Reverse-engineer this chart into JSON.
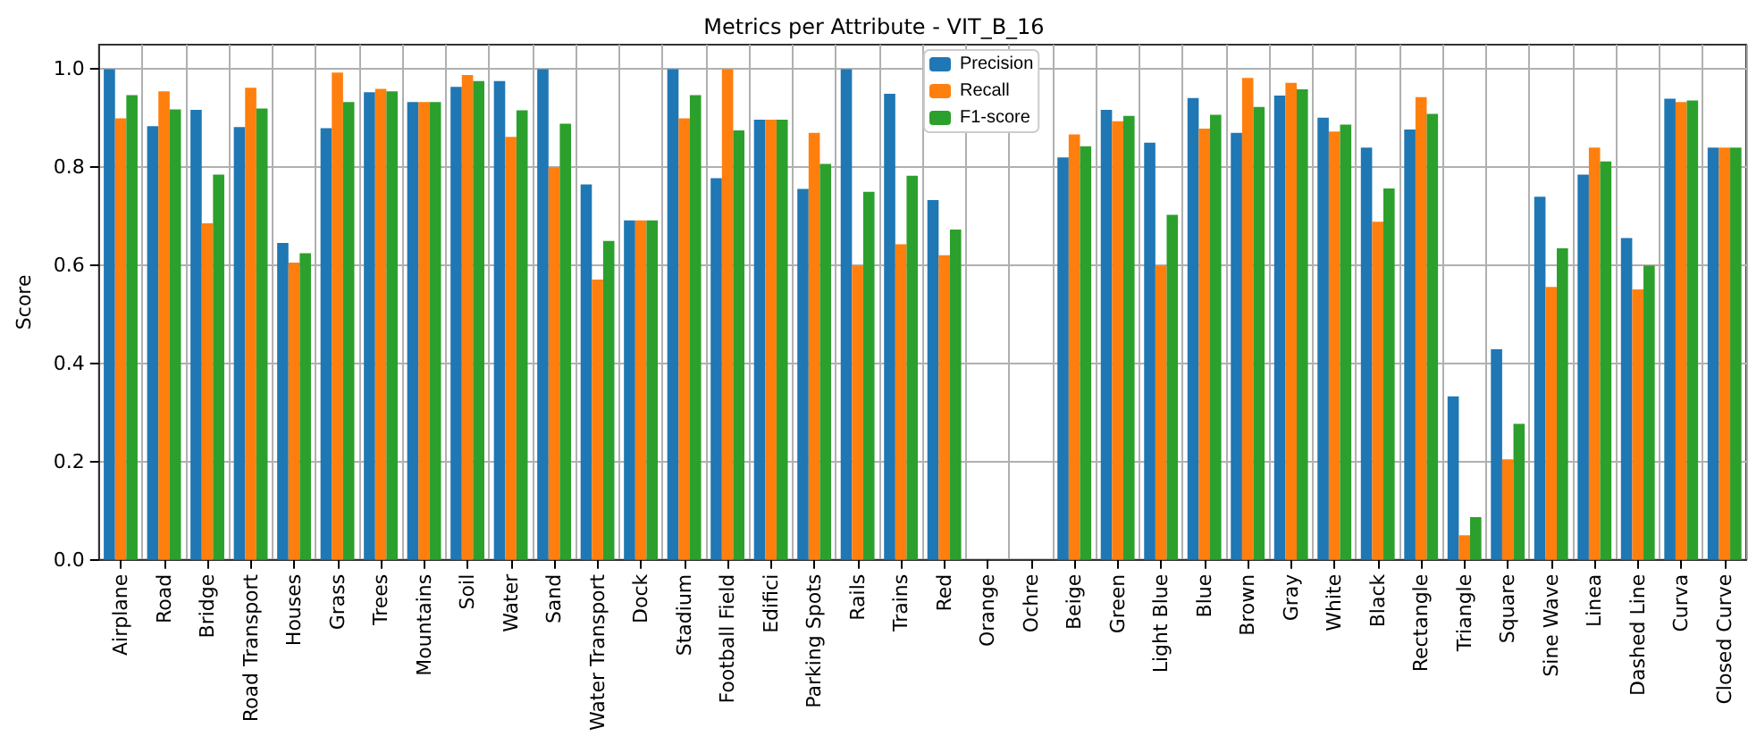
{
  "chart_data": {
    "type": "bar",
    "title": "Metrics per Attribute - VIT_B_16",
    "ylabel": "Score",
    "categories": [
      "Airplane",
      "Road",
      "Bridge",
      "Road Transport",
      "Houses",
      "Grass",
      "Trees",
      "Mountains",
      "Soil",
      "Water",
      "Sand",
      "Water Transport",
      "Dock",
      "Stadium",
      "Football Field",
      "Edifici",
      "Parking Spots",
      "Rails",
      "Trains",
      "Red",
      "Orange",
      "Ochre",
      "Beige",
      "Green",
      "Light Blue",
      "Blue",
      "Brown",
      "Gray",
      "White",
      "Black",
      "Rectangle",
      "Triangle",
      "Square",
      "Sine Wave",
      "Linea",
      "Dashed Line",
      "Curva",
      "Closed Curve"
    ],
    "series": [
      {
        "name": "Precision",
        "color": "#1f77b4",
        "values": [
          1.0,
          0.884,
          0.917,
          0.882,
          0.646,
          0.88,
          0.953,
          0.933,
          0.964,
          0.976,
          1.0,
          0.765,
          0.692,
          1.0,
          0.778,
          0.897,
          0.756,
          1.0,
          0.95,
          0.733,
          0,
          0,
          0.82,
          0.917,
          0.85,
          0.941,
          0.87,
          0.946,
          0.901,
          0.84,
          0.877,
          0.333,
          0.429,
          0.74,
          0.785,
          0.656,
          0.94,
          0.84
        ]
      },
      {
        "name": "Recall",
        "color": "#ff7f0e",
        "values": [
          0.9,
          0.955,
          0.686,
          0.962,
          0.606,
          0.993,
          0.96,
          0.933,
          0.988,
          0.862,
          0.8,
          0.571,
          0.692,
          0.9,
          1.0,
          0.897,
          0.87,
          0.6,
          0.643,
          0.621,
          0,
          0,
          0.867,
          0.894,
          0.6,
          0.879,
          0.982,
          0.972,
          0.873,
          0.689,
          0.943,
          0.05,
          0.205,
          0.556,
          0.84,
          0.551,
          0.933,
          0.84
        ]
      },
      {
        "name": "F1-score",
        "color": "#2ca02c",
        "values": [
          0.947,
          0.918,
          0.785,
          0.92,
          0.625,
          0.933,
          0.955,
          0.933,
          0.976,
          0.916,
          0.889,
          0.65,
          0.692,
          0.947,
          0.875,
          0.897,
          0.807,
          0.75,
          0.783,
          0.673,
          0,
          0,
          0.843,
          0.905,
          0.703,
          0.907,
          0.923,
          0.959,
          0.887,
          0.757,
          0.909,
          0.087,
          0.277,
          0.635,
          0.812,
          0.6,
          0.936,
          0.84
        ]
      }
    ],
    "ylim": [
      0,
      1.05
    ],
    "yticks": [
      {
        "value": 0,
        "label": "0.0"
      },
      {
        "value": 0.2,
        "label": "0.2"
      },
      {
        "value": 0.4,
        "label": "0.4"
      },
      {
        "value": 0.6,
        "label": "0.6"
      },
      {
        "value": 0.8,
        "label": "0.8"
      },
      {
        "value": 1.0,
        "label": "1.0"
      }
    ],
    "grid": true,
    "legend": "top"
  }
}
